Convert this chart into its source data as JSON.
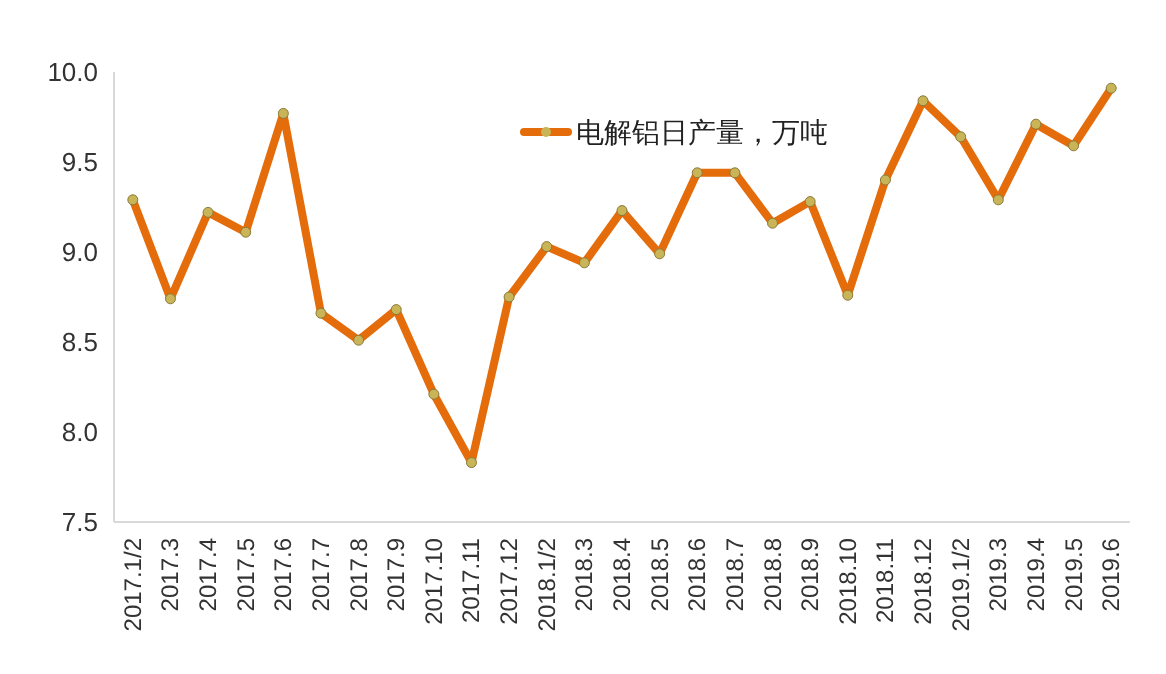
{
  "chart_data": {
    "type": "line",
    "categories": [
      "2017.1/2",
      "2017.3",
      "2017.4",
      "2017.5",
      "2017.6",
      "2017.7",
      "2017.8",
      "2017.9",
      "2017.10",
      "2017.11",
      "2017.12",
      "2018.1/2",
      "2018.3",
      "2018.4",
      "2018.5",
      "2018.6",
      "2018.7",
      "2018.8",
      "2018.9",
      "2018.10",
      "2018.11",
      "2018.12",
      "2019.1/2",
      "2019.3",
      "2019.4",
      "2019.5",
      "2019.6"
    ],
    "series": [
      {
        "name": "电解铝日产量，万吨",
        "color": "#e46c0a",
        "values": [
          9.29,
          8.74,
          9.22,
          9.11,
          9.77,
          8.66,
          8.51,
          8.68,
          8.21,
          7.83,
          8.75,
          9.03,
          8.94,
          9.23,
          8.99,
          9.44,
          9.44,
          9.16,
          9.28,
          8.76,
          9.4,
          9.84,
          9.64,
          9.29,
          9.71,
          9.59,
          9.91
        ]
      }
    ],
    "ylim": [
      7.5,
      10.0
    ],
    "yticks": [
      {
        "value": 7.5,
        "label": "7.5"
      },
      {
        "value": 8.0,
        "label": "8.0"
      },
      {
        "value": 8.5,
        "label": "8.5"
      },
      {
        "value": 9.0,
        "label": "9.0"
      },
      {
        "value": 9.5,
        "label": "9.5"
      },
      {
        "value": 10.0,
        "label": "10.0"
      }
    ],
    "legend": "top",
    "marker": "circle",
    "line_style": "solid",
    "grid": false
  }
}
